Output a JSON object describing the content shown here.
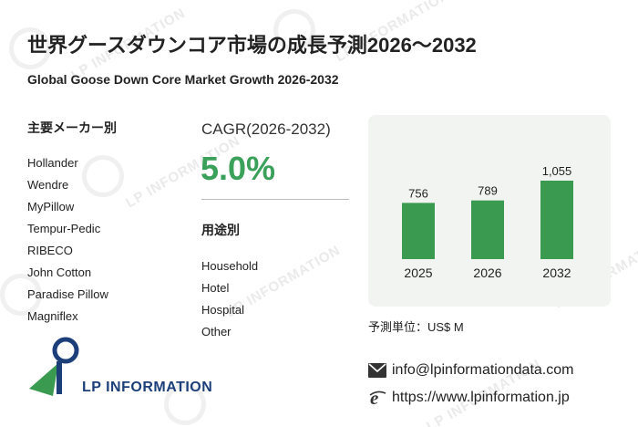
{
  "header": {
    "title": "世界グースダウンコア市場の成長予測2026～2032",
    "subtitle": "Global Goose Down Core Market Growth 2026-2032"
  },
  "manufacturers": {
    "heading": "主要メーカー別",
    "items": [
      "Hollander",
      "Wendre",
      "MyPillow",
      "Tempur-Pedic",
      "RIBECO",
      "John Cotton",
      "Paradise Pillow",
      "Magniflex"
    ]
  },
  "cagr": {
    "label": "CAGR(2026-2032)",
    "value": "5.0%"
  },
  "applications": {
    "heading": "用途別",
    "items": [
      "Household",
      "Hotel",
      "Hospital",
      "Other"
    ]
  },
  "chart_data": {
    "type": "bar",
    "categories": [
      "2025",
      "2026",
      "2032"
    ],
    "values": [
      756,
      789,
      1055
    ],
    "value_labels": [
      "756",
      "789",
      "1,055"
    ],
    "title": "",
    "xlabel": "",
    "ylabel": "",
    "ylim": [
      0,
      1100
    ],
    "grid": false,
    "bar_color": "#3a9a4f",
    "panel_color": "#f2f4f2"
  },
  "unit_label": "予測単位：US$ M",
  "contact": {
    "email": "info@lpinformationdata.com",
    "website": "https://www.lpinformation.jp"
  },
  "logo": {
    "text": "LP INFORMATION"
  },
  "watermark": {
    "text": "LP INFORMATION"
  },
  "colors": {
    "accent_green": "#3aa05a",
    "logo_blue": "#1c3f7a",
    "logo_green": "#3a9a4f"
  }
}
